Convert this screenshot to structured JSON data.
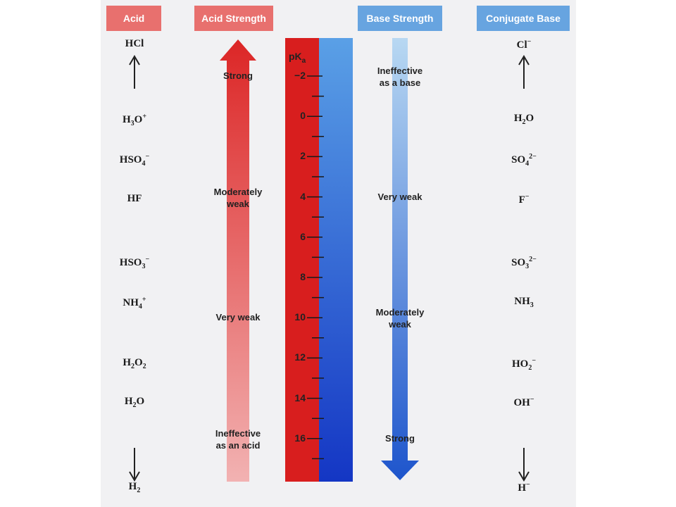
{
  "headers": {
    "acid": "Acid",
    "acid_strength": "Acid Strength",
    "base_strength": "Base Strength",
    "conjugate_base": "Conjugate Base"
  },
  "scale": {
    "label": "pK",
    "label_sub": "a",
    "ticks": [
      "−2",
      "0",
      "2",
      "4",
      "6",
      "8",
      "10",
      "12",
      "14",
      "16"
    ],
    "colors": {
      "acid": "#d81e1e",
      "base": "#1a4fd0"
    }
  },
  "acid_strength_labels": [
    {
      "pka": -2,
      "line1": "Strong",
      "line2": ""
    },
    {
      "pka": 4,
      "line1": "Moderately",
      "line2": "weak"
    },
    {
      "pka": 10,
      "line1": "Very weak",
      "line2": ""
    },
    {
      "pka": 16,
      "line1": "Ineffective",
      "line2": "as an acid"
    }
  ],
  "base_strength_labels": [
    {
      "pka": -2,
      "line1": "Ineffective",
      "line2": "as a base"
    },
    {
      "pka": 4,
      "line1": "Very weak",
      "line2": ""
    },
    {
      "pka": 10,
      "line1": "Moderately",
      "line2": "weak"
    },
    {
      "pka": 16,
      "line1": "Strong",
      "line2": ""
    }
  ],
  "acids": [
    {
      "base": "HCl",
      "sub": "",
      "sup": ""
    },
    {
      "base": "H",
      "sub": "3",
      "rest": "O",
      "sup": "+"
    },
    {
      "base": "HSO",
      "sub": "4",
      "sup": "−"
    },
    {
      "base": "HF",
      "sub": "",
      "sup": ""
    },
    {
      "base": "HSO",
      "sub": "3",
      "sup": "−"
    },
    {
      "base": "NH",
      "sub": "4",
      "sup": "+"
    },
    {
      "base": "H",
      "sub": "2",
      "rest": "O",
      "sub2": "2",
      "sup": ""
    },
    {
      "base": "H",
      "sub": "2",
      "rest": "O",
      "sup": ""
    },
    {
      "base": "H",
      "sub": "2",
      "sup": ""
    }
  ],
  "conjugate_bases": [
    {
      "base": "Cl",
      "sub": "",
      "sup": "−"
    },
    {
      "base": "H",
      "sub": "2",
      "rest": "O",
      "sup": ""
    },
    {
      "base": "SO",
      "sub": "4",
      "sup": "2−"
    },
    {
      "base": "F",
      "sub": "",
      "sup": "−"
    },
    {
      "base": "SO",
      "sub": "3",
      "sup": "2−"
    },
    {
      "base": "NH",
      "sub": "3",
      "sup": ""
    },
    {
      "base": "HO",
      "sub": "2",
      "sup": "−"
    },
    {
      "base": "OH",
      "sub": "",
      "sup": "−"
    },
    {
      "base": "H",
      "sub": "",
      "sup": "−"
    }
  ]
}
